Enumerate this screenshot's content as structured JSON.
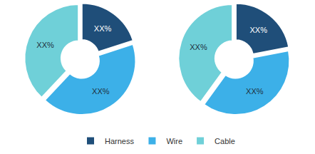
{
  "chart_data": [
    {
      "type": "pie",
      "categories": [
        "Harness",
        "Wire",
        "Cable"
      ],
      "values": [
        20,
        42,
        38
      ],
      "value_labels": [
        "XX%",
        "XX%",
        "XX%"
      ],
      "colors": [
        "#1f4e79",
        "#3cb0e8",
        "#6fd0d8"
      ],
      "data_labels": true,
      "legend": "bottom"
    },
    {
      "type": "pie",
      "categories": [
        "Harness",
        "Wire",
        "Cable"
      ],
      "values": [
        22,
        38,
        40
      ],
      "value_labels": [
        "XX%",
        "XX%",
        "XX%"
      ],
      "colors": [
        "#1f4e79",
        "#3cb0e8",
        "#6fd0d8"
      ],
      "data_labels": true,
      "legend": "bottom"
    }
  ]
}
